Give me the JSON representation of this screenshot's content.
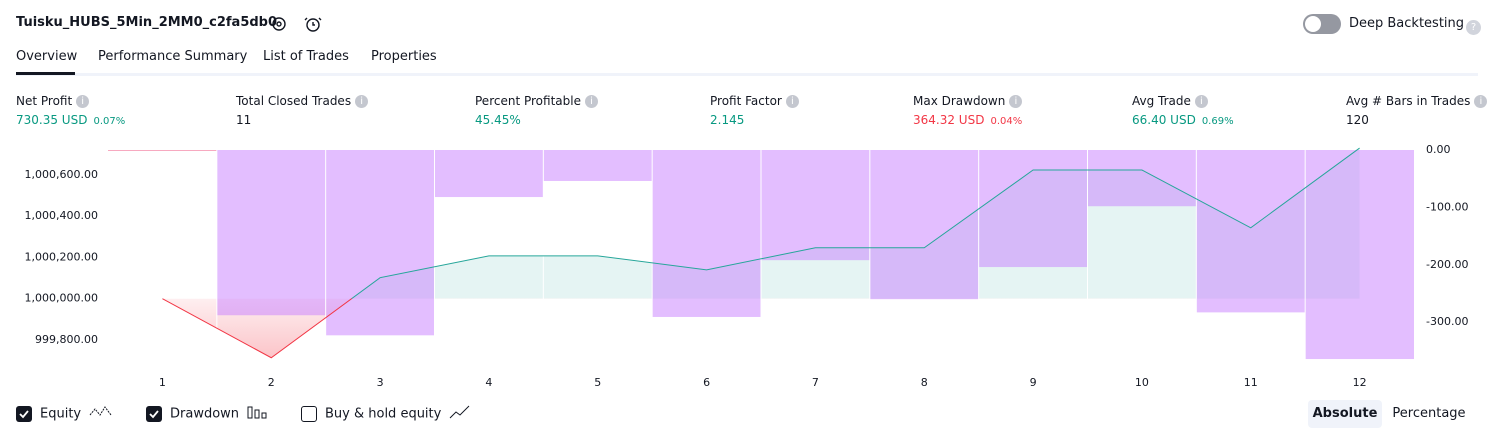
{
  "header": {
    "title": "Tuisku_HUBS_5Min_2MM0_c2fa5db0",
    "deep_backtesting": "Deep Backtesting"
  },
  "tabs": [
    "Overview",
    "Performance Summary",
    "List of Trades",
    "Properties"
  ],
  "active_tab": 0,
  "metrics": [
    {
      "label": "Net Profit",
      "value": "730.35 USD",
      "percent": "0.07%",
      "color": "#089981"
    },
    {
      "label": "Total Closed Trades",
      "value": "11",
      "color": "#131722"
    },
    {
      "label": "Percent Profitable",
      "value": "45.45%",
      "color": "#089981"
    },
    {
      "label": "Profit Factor",
      "value": "2.145",
      "color": "#089981"
    },
    {
      "label": "Max Drawdown",
      "value": "364.32 USD",
      "percent": "0.04%",
      "color": "#f23645"
    },
    {
      "label": "Avg Trade",
      "value": "66.40 USD",
      "percent": "0.69%",
      "color": "#089981"
    },
    {
      "label": "Avg # Bars in Trades",
      "value": "120",
      "color": "#131722"
    }
  ],
  "chart_data": {
    "type": "equity",
    "categories": [
      "1",
      "2",
      "3",
      "4",
      "5",
      "6",
      "7",
      "8",
      "9",
      "10",
      "11",
      "12"
    ],
    "series": [
      {
        "name": "Equity",
        "color": "#26a69a",
        "values": [
          1000000,
          999714,
          1000102,
          1000208,
          1000208,
          1000140,
          1000247,
          1000247,
          1000624,
          1000624,
          1000344,
          1000730.35
        ]
      },
      {
        "name": "Drawdown",
        "color": "#c77dff",
        "axis": "y2",
        "values": [
          0,
          -288,
          -323,
          -82,
          -54,
          -291,
          -192,
          -260,
          -204,
          -98,
          -283,
          -364.32
        ]
      }
    ],
    "ylim": [
      999703,
      1000721
    ],
    "yticks": [
      {
        "value": 999800,
        "label": "999,800.00"
      },
      {
        "value": 1000000,
        "label": "1,000,000.00"
      },
      {
        "value": 1000200,
        "label": "1,000,200.00"
      },
      {
        "value": 1000400,
        "label": "1,000,400.00"
      },
      {
        "value": 1000600,
        "label": "1,000,600.00"
      }
    ],
    "y2lim": [
      -366,
      0
    ],
    "y2ticks": [
      {
        "value": -300,
        "label": "-300.00"
      },
      {
        "value": -200,
        "label": "-200.00"
      },
      {
        "value": -100,
        "label": "-100.00"
      },
      {
        "value": 0,
        "label": "0.00"
      }
    ],
    "baseline": 1000000,
    "loss_color": "#f23645"
  },
  "buy_hold": {
    "name": "Buy & hold equity",
    "checked": false
  },
  "modes": [
    "Absolute",
    "Percentage"
  ],
  "active_mode": 0
}
